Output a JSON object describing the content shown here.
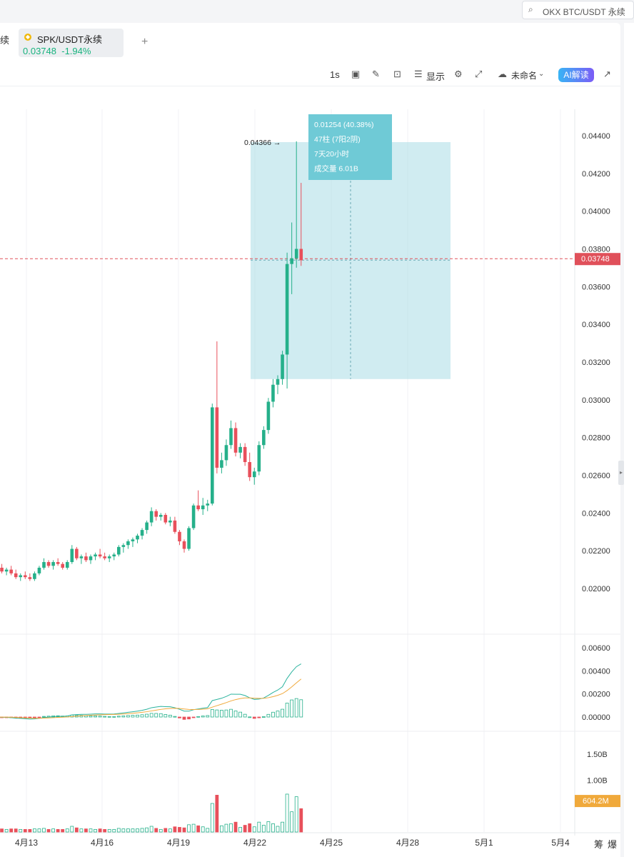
{
  "search": {
    "placeholder": "OKX BTC/USDT 永续"
  },
  "tabs": {
    "prev_label": "续",
    "active": {
      "symbol": "SPK/USDT永续",
      "price": "0.03748",
      "change": "-1.94%"
    },
    "add": "+"
  },
  "toolbar": {
    "interval": "1s",
    "display": "显示",
    "layout_name": "未命名",
    "ai_label": "AI解读"
  },
  "chart_data": {
    "type": "candlestick",
    "price_axis": [
      "0.04400",
      "0.04200",
      "0.04000",
      "0.03800",
      "0.03600",
      "0.03400",
      "0.03200",
      "0.03000",
      "0.02800",
      "0.02600",
      "0.02400",
      "0.02200",
      "0.02000"
    ],
    "current_price": "0.03748",
    "high_marker": "0.04366",
    "x_axis": [
      "4月13",
      "4月16",
      "4月19",
      "4月22",
      "4月25",
      "4月28",
      "5月1",
      "5月4"
    ],
    "candles": [
      {
        "o": 0.0213,
        "h": 0.0215,
        "l": 0.021,
        "c": 0.0211
      },
      {
        "o": 0.0211,
        "h": 0.0213,
        "l": 0.0208,
        "c": 0.0209
      },
      {
        "o": 0.0209,
        "h": 0.0211,
        "l": 0.0207,
        "c": 0.021
      },
      {
        "o": 0.021,
        "h": 0.0212,
        "l": 0.0207,
        "c": 0.0208
      },
      {
        "o": 0.0208,
        "h": 0.021,
        "l": 0.0205,
        "c": 0.0206
      },
      {
        "o": 0.0206,
        "h": 0.0208,
        "l": 0.0204,
        "c": 0.0207
      },
      {
        "o": 0.0207,
        "h": 0.0209,
        "l": 0.0205,
        "c": 0.0206
      },
      {
        "o": 0.0206,
        "h": 0.0208,
        "l": 0.0204,
        "c": 0.0205
      },
      {
        "o": 0.0205,
        "h": 0.0209,
        "l": 0.0204,
        "c": 0.0208
      },
      {
        "o": 0.0208,
        "h": 0.0212,
        "l": 0.0207,
        "c": 0.0211
      },
      {
        "o": 0.0211,
        "h": 0.0216,
        "l": 0.021,
        "c": 0.0214
      },
      {
        "o": 0.0214,
        "h": 0.0215,
        "l": 0.0211,
        "c": 0.0212
      },
      {
        "o": 0.0212,
        "h": 0.0215,
        "l": 0.021,
        "c": 0.0214
      },
      {
        "o": 0.0214,
        "h": 0.0216,
        "l": 0.0212,
        "c": 0.0213
      },
      {
        "o": 0.0213,
        "h": 0.0214,
        "l": 0.021,
        "c": 0.0211
      },
      {
        "o": 0.0211,
        "h": 0.0215,
        "l": 0.021,
        "c": 0.0214
      },
      {
        "o": 0.0214,
        "h": 0.0223,
        "l": 0.0213,
        "c": 0.0221
      },
      {
        "o": 0.0221,
        "h": 0.0222,
        "l": 0.0215,
        "c": 0.0216
      },
      {
        "o": 0.0216,
        "h": 0.0218,
        "l": 0.0213,
        "c": 0.0217
      },
      {
        "o": 0.0217,
        "h": 0.0219,
        "l": 0.0214,
        "c": 0.0215
      },
      {
        "o": 0.0215,
        "h": 0.0218,
        "l": 0.0213,
        "c": 0.0217
      },
      {
        "o": 0.0217,
        "h": 0.0219,
        "l": 0.0215,
        "c": 0.0218
      },
      {
        "o": 0.0218,
        "h": 0.0221,
        "l": 0.0216,
        "c": 0.0217
      },
      {
        "o": 0.0217,
        "h": 0.0219,
        "l": 0.0215,
        "c": 0.0216
      },
      {
        "o": 0.0216,
        "h": 0.0218,
        "l": 0.0214,
        "c": 0.0217
      },
      {
        "o": 0.0217,
        "h": 0.0219,
        "l": 0.0215,
        "c": 0.0218
      },
      {
        "o": 0.0218,
        "h": 0.0223,
        "l": 0.0217,
        "c": 0.0222
      },
      {
        "o": 0.0222,
        "h": 0.0224,
        "l": 0.0219,
        "c": 0.0223
      },
      {
        "o": 0.0223,
        "h": 0.0226,
        "l": 0.0221,
        "c": 0.0225
      },
      {
        "o": 0.0225,
        "h": 0.0227,
        "l": 0.0222,
        "c": 0.0226
      },
      {
        "o": 0.0226,
        "h": 0.0229,
        "l": 0.0224,
        "c": 0.0228
      },
      {
        "o": 0.0228,
        "h": 0.0232,
        "l": 0.0226,
        "c": 0.0231
      },
      {
        "o": 0.0231,
        "h": 0.0236,
        "l": 0.0229,
        "c": 0.0235
      },
      {
        "o": 0.0235,
        "h": 0.0243,
        "l": 0.0233,
        "c": 0.0241
      },
      {
        "o": 0.0241,
        "h": 0.0242,
        "l": 0.0236,
        "c": 0.0238
      },
      {
        "o": 0.0238,
        "h": 0.024,
        "l": 0.0236,
        "c": 0.0239
      },
      {
        "o": 0.0239,
        "h": 0.024,
        "l": 0.0234,
        "c": 0.0235
      },
      {
        "o": 0.0235,
        "h": 0.0238,
        "l": 0.0233,
        "c": 0.0236
      },
      {
        "o": 0.0236,
        "h": 0.0238,
        "l": 0.0229,
        "c": 0.023
      },
      {
        "o": 0.023,
        "h": 0.0231,
        "l": 0.0223,
        "c": 0.0225
      },
      {
        "o": 0.0225,
        "h": 0.0226,
        "l": 0.0219,
        "c": 0.0221
      },
      {
        "o": 0.0221,
        "h": 0.0233,
        "l": 0.022,
        "c": 0.0232
      },
      {
        "o": 0.0232,
        "h": 0.0245,
        "l": 0.0231,
        "c": 0.0244
      },
      {
        "o": 0.0244,
        "h": 0.0252,
        "l": 0.0241,
        "c": 0.0242
      },
      {
        "o": 0.0242,
        "h": 0.0248,
        "l": 0.0239,
        "c": 0.0244
      },
      {
        "o": 0.0244,
        "h": 0.0247,
        "l": 0.0241,
        "c": 0.0245
      },
      {
        "o": 0.0245,
        "h": 0.0298,
        "l": 0.0244,
        "c": 0.0296
      },
      {
        "o": 0.0296,
        "h": 0.0331,
        "l": 0.0261,
        "c": 0.0264
      },
      {
        "o": 0.0264,
        "h": 0.0272,
        "l": 0.0261,
        "c": 0.0268
      },
      {
        "o": 0.0268,
        "h": 0.0279,
        "l": 0.0265,
        "c": 0.0276
      },
      {
        "o": 0.0276,
        "h": 0.0289,
        "l": 0.0274,
        "c": 0.0285
      },
      {
        "o": 0.0285,
        "h": 0.0288,
        "l": 0.027,
        "c": 0.0272
      },
      {
        "o": 0.0272,
        "h": 0.0277,
        "l": 0.0269,
        "c": 0.0275
      },
      {
        "o": 0.0275,
        "h": 0.0277,
        "l": 0.0265,
        "c": 0.0267
      },
      {
        "o": 0.0267,
        "h": 0.0272,
        "l": 0.0257,
        "c": 0.0259
      },
      {
        "o": 0.0259,
        "h": 0.0264,
        "l": 0.0255,
        "c": 0.0262
      },
      {
        "o": 0.0262,
        "h": 0.0278,
        "l": 0.026,
        "c": 0.0276
      },
      {
        "o": 0.0276,
        "h": 0.0286,
        "l": 0.0274,
        "c": 0.0284
      },
      {
        "o": 0.0284,
        "h": 0.0301,
        "l": 0.0282,
        "c": 0.0299
      },
      {
        "o": 0.0299,
        "h": 0.0311,
        "l": 0.0296,
        "c": 0.0308
      },
      {
        "o": 0.0308,
        "h": 0.0313,
        "l": 0.0303,
        "c": 0.0311
      },
      {
        "o": 0.0311,
        "h": 0.0326,
        "l": 0.0308,
        "c": 0.0324
      },
      {
        "o": 0.0324,
        "h": 0.0378,
        "l": 0.0306,
        "c": 0.0372
      },
      {
        "o": 0.0372,
        "h": 0.0394,
        "l": 0.0356,
        "c": 0.0375
      },
      {
        "o": 0.0375,
        "h": 0.0437,
        "l": 0.037,
        "c": 0.038
      },
      {
        "o": 0.038,
        "h": 0.0415,
        "l": 0.0371,
        "c": 0.0374
      }
    ],
    "measure": {
      "change": "0.01254 (40.38%)",
      "bars": "47柱 (7阳2阴)",
      "time": "7天20小时",
      "volume": "成交量 6.01B"
    },
    "macd_axis": [
      "0.00600",
      "0.00400",
      "0.00200",
      "0.00000"
    ],
    "volume_axis": [
      "1.50B",
      "1.00B"
    ],
    "current_volume": "604.2M",
    "colors": {
      "up": "#25b08a",
      "down": "#e8505b",
      "measure_box": "#a9dde6",
      "measure_label": "#6fcad6",
      "price_tag": "#e0505a",
      "volume_tag": "#f0a93b"
    }
  },
  "bottom_right": {
    "label1": "筹",
    "label2": "爆"
  }
}
